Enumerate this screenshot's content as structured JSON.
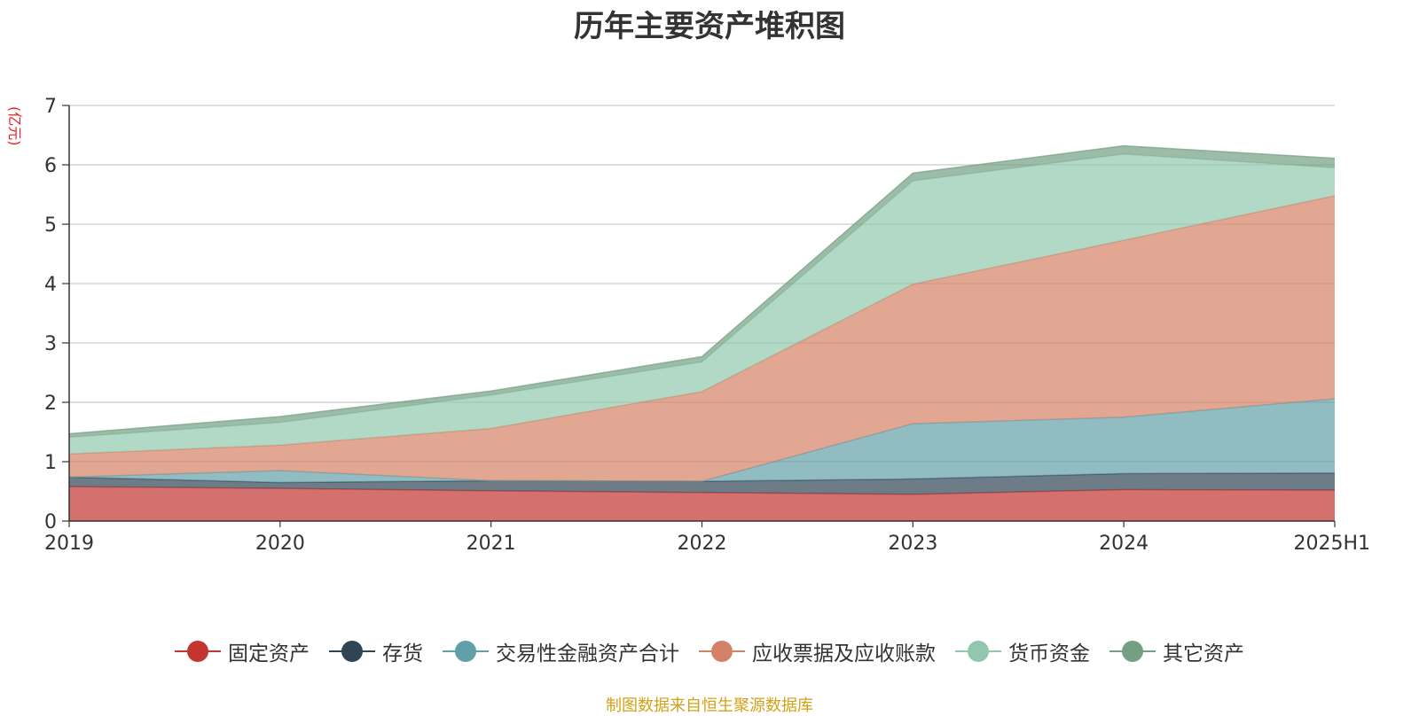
{
  "chart_data": {
    "type": "area",
    "title": "历年主要资产堆积图",
    "ylabel": "(亿元)",
    "categories": [
      "2019",
      "2020",
      "2021",
      "2022",
      "2023",
      "2024",
      "2025H1"
    ],
    "ylim": [
      0,
      7
    ],
    "yticks": [
      0,
      1,
      2,
      3,
      4,
      5,
      6,
      7
    ],
    "stacked": true,
    "grid": true,
    "legend_position": "bottom",
    "series": [
      {
        "name": "固定资产",
        "color": "#c23531",
        "values": [
          0.58,
          0.55,
          0.51,
          0.48,
          0.45,
          0.53,
          0.52
        ]
      },
      {
        "name": "存货",
        "color": "#2f4554",
        "values": [
          0.16,
          0.1,
          0.17,
          0.19,
          0.26,
          0.27,
          0.29
        ]
      },
      {
        "name": "交易性金融资产合计",
        "color": "#61a0a8",
        "values": [
          0.0,
          0.2,
          0.0,
          0.0,
          0.93,
          0.95,
          1.25
        ]
      },
      {
        "name": "应收票据及应收账款",
        "color": "#d48265",
        "values": [
          0.39,
          0.43,
          0.88,
          1.51,
          2.35,
          2.98,
          3.42
        ]
      },
      {
        "name": "货币资金",
        "color": "#91c7ae",
        "values": [
          0.28,
          0.38,
          0.56,
          0.5,
          1.74,
          1.45,
          0.47
        ]
      },
      {
        "name": "其它资产",
        "color": "#749f83",
        "values": [
          0.06,
          0.1,
          0.07,
          0.09,
          0.13,
          0.14,
          0.16
        ]
      }
    ]
  },
  "source_note": "制图数据来自恒生聚源数据库"
}
